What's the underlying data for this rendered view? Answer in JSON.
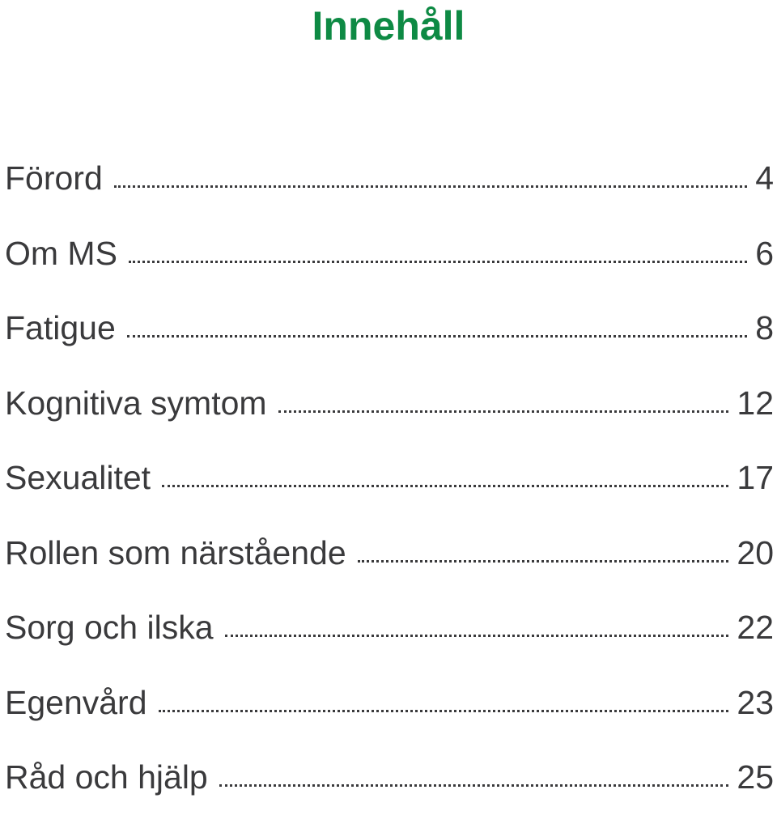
{
  "title": "Innehåll",
  "accent_color": "#0e8a44",
  "toc": [
    {
      "label": "Förord",
      "page": "4"
    },
    {
      "label": "Om MS",
      "page": "6"
    },
    {
      "label": "Fatigue",
      "page": "8"
    },
    {
      "label": "Kognitiva symtom",
      "page": "12"
    },
    {
      "label": "Sexualitet",
      "page": "17"
    },
    {
      "label": "Rollen som närstående",
      "page": "20"
    },
    {
      "label": "Sorg och ilska",
      "page": "22"
    },
    {
      "label": "Egenvård",
      "page": "23"
    },
    {
      "label": "Råd och hjälp",
      "page": "25"
    }
  ]
}
